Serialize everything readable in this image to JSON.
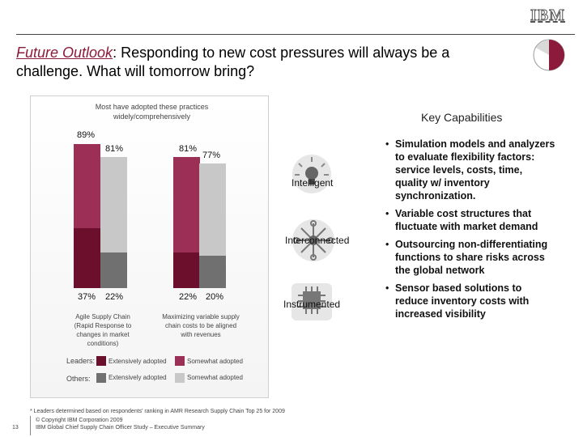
{
  "header": {
    "logo_text": "IBM",
    "title_emphasis": "Future Outlook",
    "title_rest": ":  Responding to new cost pressures will always be a challenge.   What will tomorrow bring?"
  },
  "chart_data": {
    "type": "bar",
    "caption": "Most have adopted these practices widely/comprehensively",
    "ylim": [
      0,
      100
    ],
    "categories": [
      "Agile Supply Chain (Rapid Response to changes in market conditions)",
      "Maximizing variable supply chain costs to be aligned with revenues"
    ],
    "series": [
      {
        "name": "Leaders: Extensively adopted",
        "values": [
          37,
          22
        ],
        "color": "#6b0f2c"
      },
      {
        "name": "Leaders: Somewhat adopted",
        "values": [
          52,
          59
        ],
        "color": "#9b2f56"
      },
      {
        "name": "Others: Extensively adopted",
        "values": [
          22,
          20
        ],
        "color": "#707070"
      },
      {
        "name": "Others: Somewhat adopted",
        "values": [
          59,
          57
        ],
        "color": "#c8c8c8"
      }
    ],
    "totals": {
      "leaders": [
        89,
        81
      ],
      "others": [
        81,
        77
      ]
    },
    "value_labels": {
      "top": [
        "89%",
        "81%",
        "81%",
        "77%"
      ],
      "bottom": [
        "37%",
        "22%",
        "22%",
        "20%"
      ]
    },
    "legend": {
      "row_labels": [
        "Leaders:",
        "Others:"
      ],
      "col_labels": [
        "Extensively adopted",
        "Somewhat adopted"
      ]
    }
  },
  "key_capabilities": {
    "heading": "Key Capabilities",
    "items": [
      {
        "label": "Intelligent",
        "icon": "lightbulb-icon"
      },
      {
        "label": "Interconnected",
        "icon": "network-hub-icon"
      },
      {
        "label": "Instrumented",
        "icon": "chip-icon"
      }
    ],
    "bullets": [
      "Simulation models and analyzers to evaluate flexibility factors: service levels, costs, time, quality w/ inventory synchronization.",
      "Variable cost structures that fluctuate with market demand",
      "Outsourcing non-differentiating functions to share risks across the global network",
      "Sensor based solutions to reduce inventory costs with increased visibility"
    ]
  },
  "footer": {
    "footnote": "* Leaders determined based on respondents' ranking in AMR Research Supply Chain Top 25 for 2009",
    "copyright": "© Copyright IBM Corporation 2009",
    "study": "IBM Global Chief Supply Chain Officer Study – Executive Summary",
    "page_number": "13"
  },
  "colors": {
    "accent": "#8c1a3a",
    "leader_dark": "#6b0f2c",
    "leader_light": "#9b2f56",
    "other_dark": "#707070",
    "other_light": "#c8c8c8"
  }
}
